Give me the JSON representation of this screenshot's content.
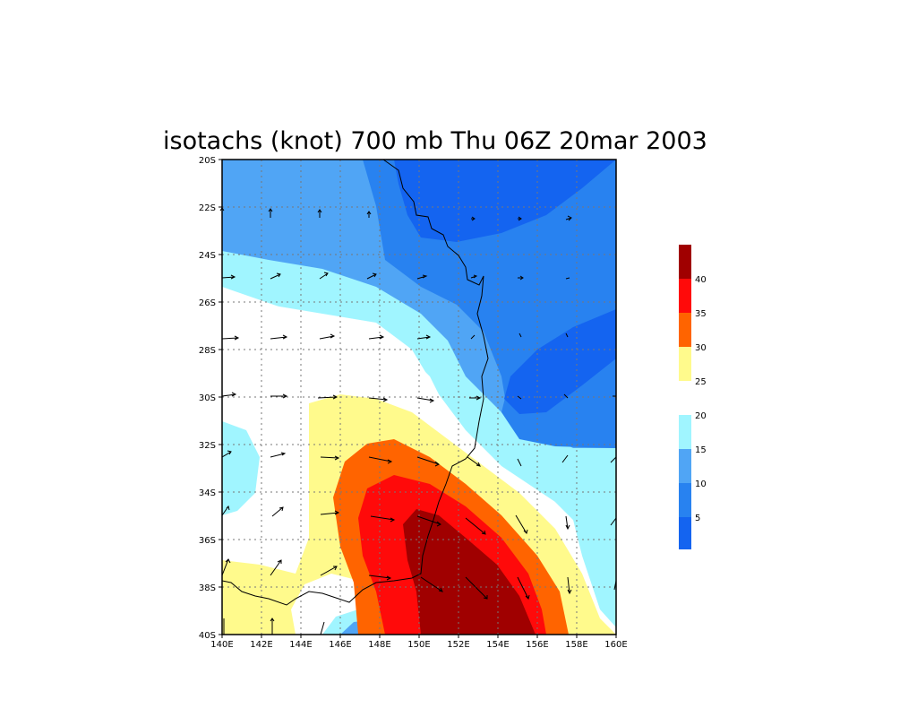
{
  "title": "isotachs (knot) 700 mb Thu 06Z 20mar 2003",
  "lat_ticks": [
    "20S",
    "22S",
    "24S",
    "26S",
    "28S",
    "30S",
    "32S",
    "34S",
    "36S",
    "38S",
    "40S"
  ],
  "lon_ticks": [
    "140E",
    "142E",
    "144E",
    "146E",
    "148E",
    "150E",
    "152E",
    "154E",
    "156E",
    "158E",
    "160E"
  ],
  "colorbar": {
    "labels": [
      "40",
      "35",
      "30",
      "25",
      "20",
      "15",
      "10",
      "5"
    ],
    "levels": [
      {
        "range": "0-5",
        "color": "#1464F0"
      },
      {
        "range": "5-10",
        "color": "#2882F0"
      },
      {
        "range": "10-15",
        "color": "#50A5F5"
      },
      {
        "range": "15-20",
        "color": "#A0F5FF"
      },
      {
        "range": "20-25",
        "color": "#FFFFFF"
      },
      {
        "range": "25-30",
        "color": "#FFFA8C"
      },
      {
        "range": "30-35",
        "color": "#FF6400"
      },
      {
        "range": "35-40",
        "color": "#FF0A0A"
      },
      {
        "range": "40+",
        "color": "#A00000"
      }
    ]
  },
  "chart_data": {
    "type": "heatmap",
    "variable": "isotachs",
    "units": "knot",
    "level": "700 mb",
    "valid_time": "Thu 06Z 20mar 2003",
    "lon_range": [
      140,
      160
    ],
    "lat_range": [
      -40,
      -20
    ],
    "contour_levels": [
      5,
      10,
      15,
      20,
      25,
      30,
      35,
      40
    ],
    "grid": true
  }
}
